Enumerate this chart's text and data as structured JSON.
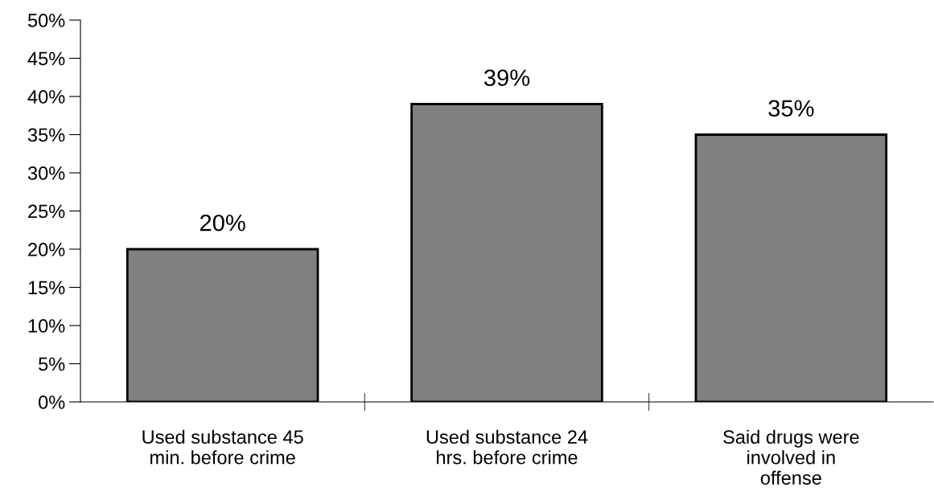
{
  "chart_data": {
    "type": "bar",
    "categories": [
      "Used substance 45\nmin. before crime",
      "Used substance 24\nhrs. before crime",
      "Said drugs were\ninvolved in\noffense"
    ],
    "values": [
      20,
      39,
      35
    ],
    "value_labels": [
      "20%",
      "39%",
      "35%"
    ],
    "color": "#808080",
    "ylim": [
      0,
      50
    ],
    "yticks": [
      {
        "value": 0,
        "label": "0%"
      },
      {
        "value": 5,
        "label": "5%"
      },
      {
        "value": 10,
        "label": "10%"
      },
      {
        "value": 15,
        "label": "15%"
      },
      {
        "value": 20,
        "label": "20%"
      },
      {
        "value": 25,
        "label": "25%"
      },
      {
        "value": 30,
        "label": "30%"
      },
      {
        "value": 35,
        "label": "35%"
      },
      {
        "value": 40,
        "label": "40%"
      },
      {
        "value": 45,
        "label": "45%"
      },
      {
        "value": 50,
        "label": "50%"
      }
    ],
    "grid": false
  }
}
